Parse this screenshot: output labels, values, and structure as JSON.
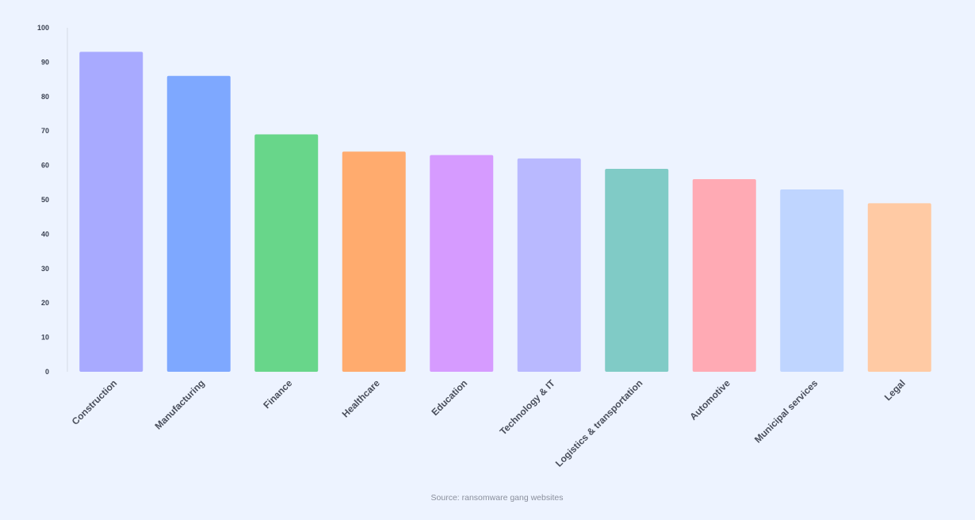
{
  "chart_data": {
    "type": "bar",
    "title": "",
    "xlabel": "",
    "ylabel": "",
    "ylim": [
      0,
      100
    ],
    "yticks": [
      0,
      10,
      20,
      30,
      40,
      50,
      60,
      70,
      80,
      90,
      100
    ],
    "grid": false,
    "categories": [
      "Construction",
      "Manufacturing",
      "Finance",
      "Healthcare",
      "Education",
      "Technology & IT",
      "Logistics & transportation",
      "Automotive",
      "Municipal services",
      "Legal"
    ],
    "values": [
      93,
      86,
      69,
      64,
      63,
      62,
      59,
      56,
      53,
      49
    ],
    "colors": [
      "#a8aaff",
      "#7ea8ff",
      "#68d68a",
      "#ffab6e",
      "#d69bff",
      "#b9b9ff",
      "#80cbc6",
      "#ffaab4",
      "#bfd5ff",
      "#ffcaa4"
    ],
    "axis_color": "#d5dbe6"
  },
  "source": "Source: ransomware gang websites"
}
